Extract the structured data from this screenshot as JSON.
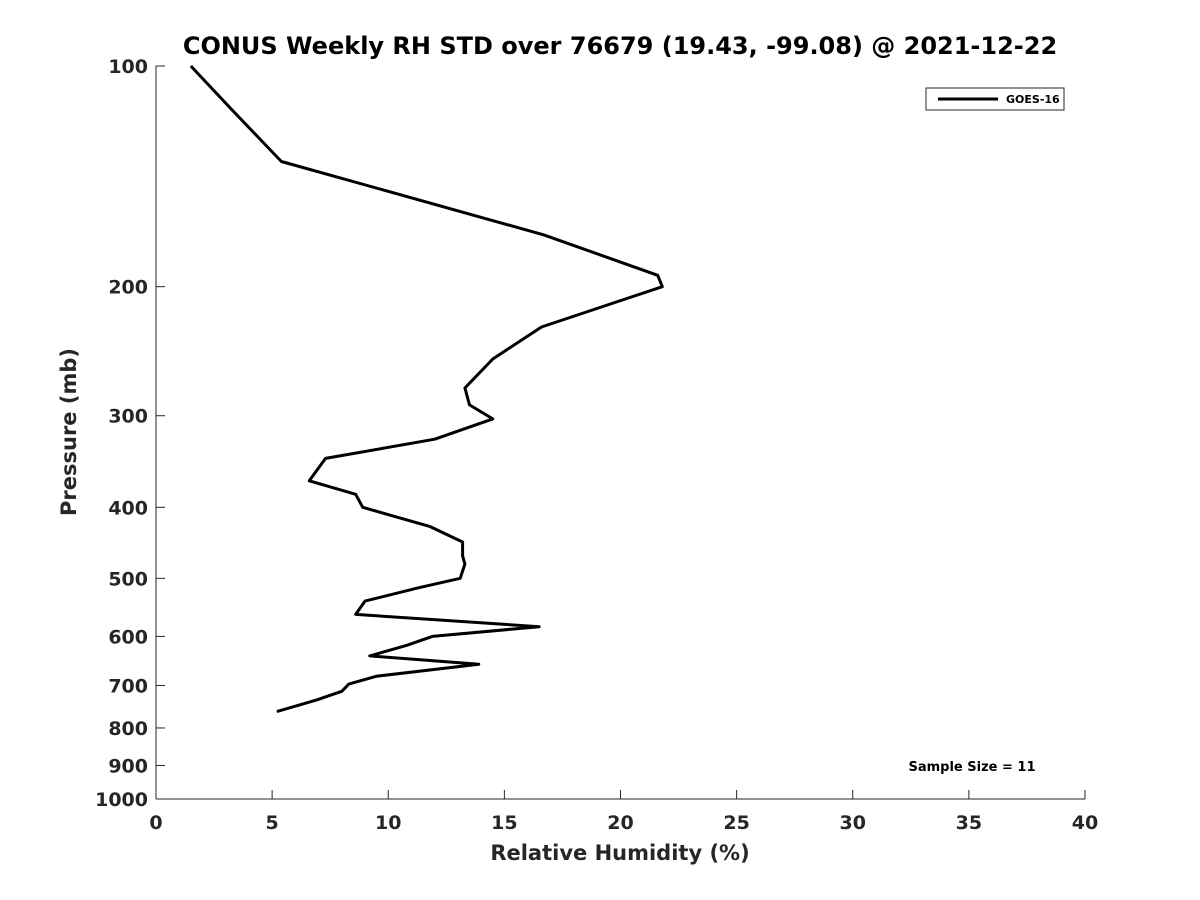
{
  "chart_data": {
    "type": "line",
    "title": "CONUS Weekly RH STD over 76679 (19.43, -99.08) @ 2021-12-22",
    "xlabel": "Relative Humidity (%)",
    "ylabel": "Pressure (mb)",
    "xlim": [
      0,
      40
    ],
    "ylim": [
      100,
      1000
    ],
    "yscale": "log",
    "y_reversed": true,
    "grid": false,
    "legend_position": "top-right",
    "x_ticks": [
      "0",
      "5",
      "10",
      "15",
      "20",
      "25",
      "30",
      "35",
      "40"
    ],
    "y_ticks": [
      "100",
      "200",
      "300",
      "400",
      "500",
      "600",
      "700",
      "800",
      "900",
      "1000"
    ],
    "series": [
      {
        "name": "GOES-16",
        "color": "#000000",
        "x": [
          1.5,
          3.3,
          5.4,
          16.7,
          21.6,
          21.8,
          16.6,
          14.5,
          13.3,
          13.5,
          14.5,
          12.0,
          7.3,
          6.6,
          8.6,
          8.9,
          11.8,
          13.2,
          13.2,
          13.3,
          13.1,
          11.3,
          9.0,
          8.6,
          16.5,
          11.9,
          10.8,
          9.2,
          13.9,
          9.5,
          8.3,
          8.0,
          6.9,
          5.2
        ],
        "y": [
          100,
          115,
          135,
          170,
          193,
          200,
          227,
          251,
          275,
          290,
          303,
          323,
          343,
          368,
          384,
          400,
          425,
          446,
          466,
          478,
          500,
          515,
          537,
          560,
          582,
          600,
          617,
          638,
          655,
          680,
          697,
          713,
          733,
          760
        ]
      }
    ],
    "annotations": [
      "Sample Size = 11"
    ]
  }
}
